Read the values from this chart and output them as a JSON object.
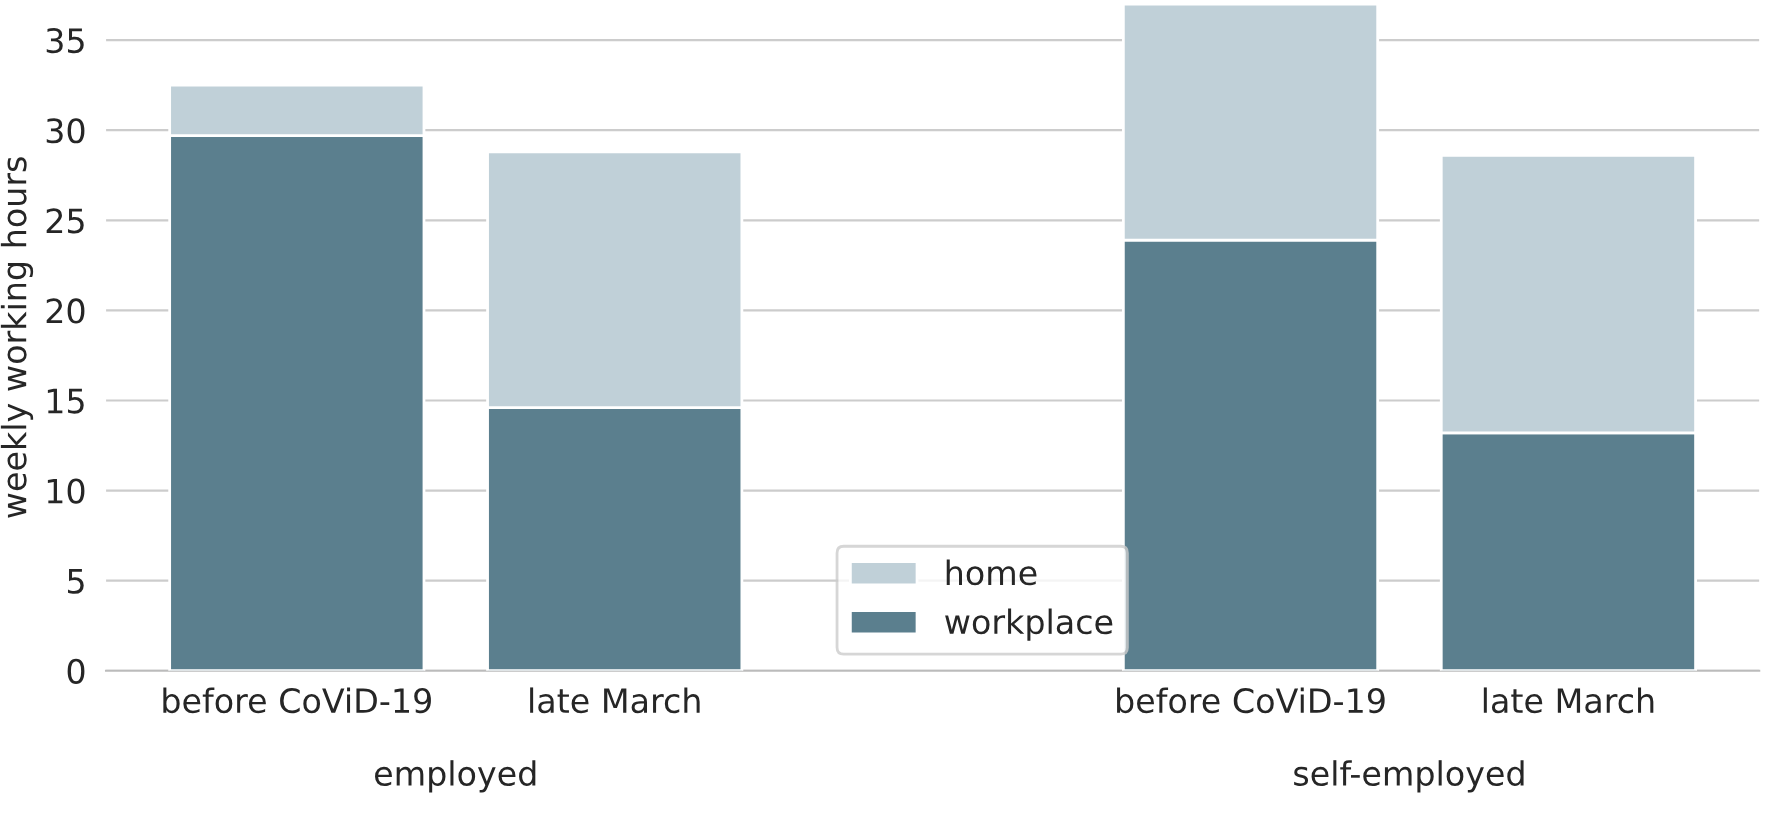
{
  "chart_data": {
    "type": "bar",
    "stacked": true,
    "ylabel": "weekly working hours",
    "categories": [
      "before CoViD-19",
      "late March",
      null,
      "before CoViD-19",
      "late March"
    ],
    "series": [
      {
        "name": "workplace",
        "color": "#5b7f8e",
        "values": [
          29.7,
          14.6,
          null,
          23.9,
          13.2
        ]
      },
      {
        "name": "home",
        "color": "#c0d0d8",
        "values": [
          2.8,
          14.2,
          null,
          13.1,
          15.4
        ]
      }
    ],
    "ylim": [
      0,
      37
    ],
    "yticks": [
      0,
      5,
      10,
      15,
      20,
      25,
      30,
      35
    ],
    "grid": "y",
    "legend": "bottom",
    "annotations": [
      "employed",
      "self-employed"
    ]
  }
}
